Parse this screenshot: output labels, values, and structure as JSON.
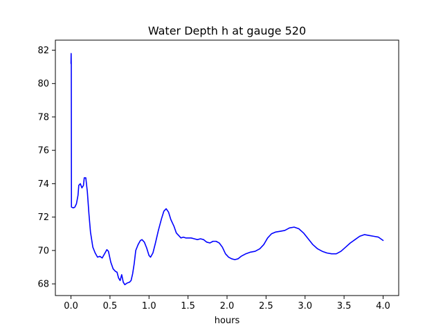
{
  "chart_data": {
    "type": "line",
    "title": "Water Depth h at gauge 520",
    "xlabel": "hours",
    "ylabel": "",
    "xlim": [
      -0.2,
      4.2
    ],
    "ylim": [
      67.3,
      82.6
    ],
    "xticks": [
      0.0,
      0.5,
      1.0,
      1.5,
      2.0,
      2.5,
      3.0,
      3.5,
      4.0
    ],
    "xtick_labels": [
      "0.0",
      "0.5",
      "1.0",
      "1.5",
      "2.0",
      "2.5",
      "3.0",
      "3.5",
      "4.0"
    ],
    "yticks": [
      68,
      70,
      72,
      74,
      76,
      78,
      80,
      82
    ],
    "ytick_labels": [
      "68",
      "70",
      "72",
      "74",
      "76",
      "78",
      "80",
      "82"
    ],
    "grid": false,
    "colors": {
      "series": "#0000ff",
      "axes": "#000000",
      "background": "#ffffff"
    },
    "series": [
      {
        "points": [
          [
            0.0,
            81.2
          ],
          [
            0.002,
            81.8
          ],
          [
            0.004,
            81.1
          ],
          [
            0.006,
            72.6
          ],
          [
            0.03,
            72.55
          ],
          [
            0.05,
            72.6
          ],
          [
            0.07,
            72.8
          ],
          [
            0.09,
            73.3
          ],
          [
            0.1,
            73.9
          ],
          [
            0.12,
            74.0
          ],
          [
            0.14,
            73.75
          ],
          [
            0.16,
            73.9
          ],
          [
            0.17,
            74.35
          ],
          [
            0.19,
            74.35
          ],
          [
            0.21,
            73.5
          ],
          [
            0.23,
            72.2
          ],
          [
            0.25,
            71.1
          ],
          [
            0.28,
            70.2
          ],
          [
            0.31,
            69.85
          ],
          [
            0.34,
            69.6
          ],
          [
            0.37,
            69.65
          ],
          [
            0.4,
            69.55
          ],
          [
            0.43,
            69.8
          ],
          [
            0.46,
            70.05
          ],
          [
            0.48,
            69.95
          ],
          [
            0.51,
            69.3
          ],
          [
            0.54,
            68.9
          ],
          [
            0.57,
            68.75
          ],
          [
            0.59,
            68.7
          ],
          [
            0.61,
            68.35
          ],
          [
            0.63,
            68.2
          ],
          [
            0.65,
            68.55
          ],
          [
            0.67,
            68.1
          ],
          [
            0.69,
            67.95
          ],
          [
            0.72,
            68.05
          ],
          [
            0.75,
            68.1
          ],
          [
            0.77,
            68.2
          ],
          [
            0.79,
            68.6
          ],
          [
            0.81,
            69.2
          ],
          [
            0.83,
            70.0
          ],
          [
            0.86,
            70.35
          ],
          [
            0.89,
            70.6
          ],
          [
            0.91,
            70.65
          ],
          [
            0.94,
            70.5
          ],
          [
            0.97,
            70.15
          ],
          [
            1.0,
            69.7
          ],
          [
            1.02,
            69.6
          ],
          [
            1.05,
            69.85
          ],
          [
            1.08,
            70.4
          ],
          [
            1.12,
            71.2
          ],
          [
            1.16,
            71.9
          ],
          [
            1.19,
            72.35
          ],
          [
            1.22,
            72.5
          ],
          [
            1.25,
            72.3
          ],
          [
            1.28,
            71.85
          ],
          [
            1.32,
            71.45
          ],
          [
            1.35,
            71.05
          ],
          [
            1.38,
            70.9
          ],
          [
            1.41,
            70.75
          ],
          [
            1.44,
            70.8
          ],
          [
            1.47,
            70.75
          ],
          [
            1.5,
            70.75
          ],
          [
            1.54,
            70.75
          ],
          [
            1.58,
            70.7
          ],
          [
            1.62,
            70.65
          ],
          [
            1.66,
            70.7
          ],
          [
            1.7,
            70.65
          ],
          [
            1.74,
            70.5
          ],
          [
            1.78,
            70.45
          ],
          [
            1.82,
            70.55
          ],
          [
            1.86,
            70.55
          ],
          [
            1.9,
            70.45
          ],
          [
            1.94,
            70.2
          ],
          [
            1.98,
            69.8
          ],
          [
            2.02,
            69.6
          ],
          [
            2.06,
            69.5
          ],
          [
            2.1,
            69.45
          ],
          [
            2.14,
            69.5
          ],
          [
            2.18,
            69.65
          ],
          [
            2.24,
            69.8
          ],
          [
            2.3,
            69.9
          ],
          [
            2.36,
            69.95
          ],
          [
            2.42,
            70.1
          ],
          [
            2.47,
            70.35
          ],
          [
            2.52,
            70.75
          ],
          [
            2.57,
            71.0
          ],
          [
            2.62,
            71.1
          ],
          [
            2.68,
            71.15
          ],
          [
            2.74,
            71.2
          ],
          [
            2.8,
            71.35
          ],
          [
            2.86,
            71.4
          ],
          [
            2.92,
            71.3
          ],
          [
            2.98,
            71.05
          ],
          [
            3.04,
            70.7
          ],
          [
            3.1,
            70.35
          ],
          [
            3.16,
            70.1
          ],
          [
            3.22,
            69.95
          ],
          [
            3.28,
            69.85
          ],
          [
            3.34,
            69.8
          ],
          [
            3.4,
            69.8
          ],
          [
            3.46,
            69.95
          ],
          [
            3.52,
            70.2
          ],
          [
            3.58,
            70.45
          ],
          [
            3.64,
            70.65
          ],
          [
            3.7,
            70.85
          ],
          [
            3.76,
            70.95
          ],
          [
            3.82,
            70.9
          ],
          [
            3.88,
            70.85
          ],
          [
            3.94,
            70.8
          ],
          [
            4.0,
            70.6
          ]
        ]
      }
    ]
  }
}
